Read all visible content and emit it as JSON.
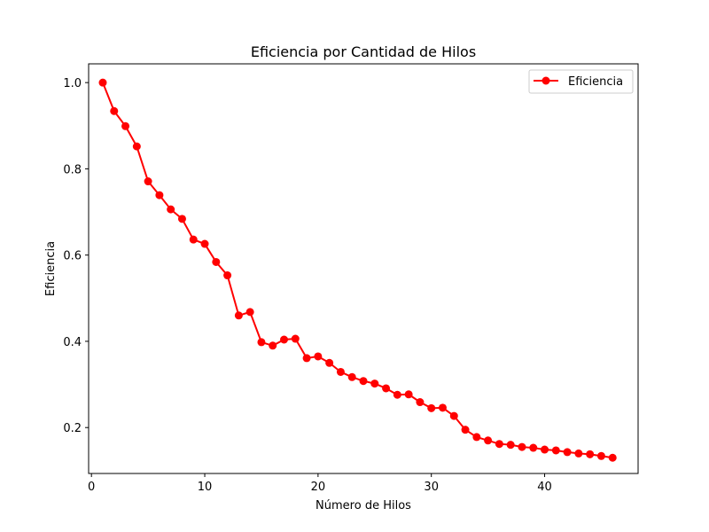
{
  "chart_data": {
    "type": "line",
    "title": "Eficiencia por Cantidad de Hilos",
    "xlabel": "Número de Hilos",
    "ylabel": "Eficiencia",
    "xlim": [
      -0.25,
      48.25
    ],
    "ylim": [
      0.0935,
      1.0435
    ],
    "xticks": [
      0,
      10,
      20,
      30,
      40
    ],
    "yticks": [
      0.2,
      0.4,
      0.6,
      0.8,
      1.0
    ],
    "xtick_labels": [
      "0",
      "10",
      "20",
      "30",
      "40"
    ],
    "ytick_labels": [
      "0.2",
      "0.4",
      "0.6",
      "0.8",
      "1.0"
    ],
    "grid": false,
    "legend_position": "upper-right",
    "series": [
      {
        "name": "Eficiencia",
        "color": "#ff0000",
        "marker": "circle",
        "x": [
          1,
          2,
          3,
          4,
          5,
          6,
          7,
          8,
          9,
          10,
          11,
          12,
          13,
          14,
          15,
          16,
          17,
          18,
          19,
          20,
          21,
          22,
          23,
          24,
          25,
          26,
          27,
          28,
          29,
          30,
          31,
          32,
          33,
          34,
          35,
          36,
          37,
          38,
          39,
          40,
          41,
          42,
          43,
          44,
          45,
          46
        ],
        "y": [
          1.0,
          0.934,
          0.899,
          0.852,
          0.771,
          0.739,
          0.706,
          0.684,
          0.636,
          0.626,
          0.584,
          0.553,
          0.46,
          0.468,
          0.398,
          0.39,
          0.404,
          0.406,
          0.361,
          0.365,
          0.35,
          0.329,
          0.317,
          0.308,
          0.302,
          0.291,
          0.276,
          0.277,
          0.259,
          0.245,
          0.246,
          0.227,
          0.195,
          0.178,
          0.17,
          0.162,
          0.16,
          0.155,
          0.153,
          0.149,
          0.147,
          0.143,
          0.14,
          0.138,
          0.134,
          0.13
        ]
      }
    ]
  }
}
